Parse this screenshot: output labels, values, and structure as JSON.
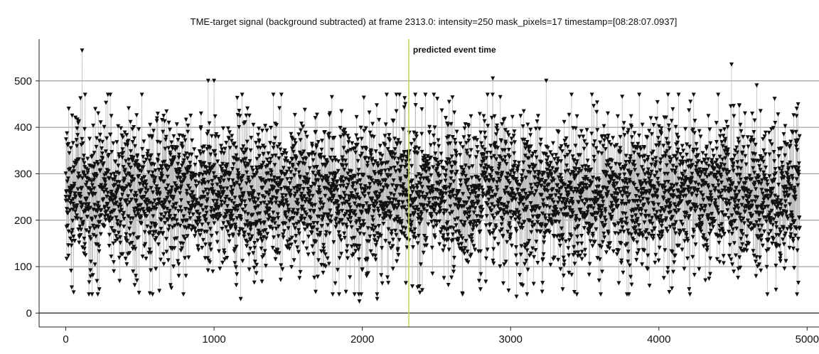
{
  "chart_data": {
    "type": "scatter",
    "title": "TME-target signal (background subtracted) at frame 2313.0: intensity=250 mask_pixels=17 timestamp=[08:28:07.0937]",
    "xlabel": "",
    "ylabel": "",
    "xlim": [
      -180,
      5080
    ],
    "ylim": [
      -30,
      590
    ],
    "x_ticks": [
      0,
      1000,
      2000,
      3000,
      4000,
      5000
    ],
    "x_tick_labels": [
      "0",
      "1000",
      "2000",
      "3000",
      "4000",
      "5000"
    ],
    "y_ticks": [
      0,
      100,
      200,
      300,
      400,
      500
    ],
    "y_tick_labels": [
      "0",
      "100",
      "200",
      "300",
      "400",
      "500"
    ],
    "grid": "horizontal",
    "legend": "none",
    "marker": "triangle-down",
    "series": [
      {
        "color": "#111111",
        "line_color": "#bdbdbd",
        "n_points": 4950,
        "x_range": [
          0,
          4950
        ],
        "mean": 255,
        "spread": 80,
        "sample_points": [
          [
            0,
            250
          ],
          [
            20,
            440
          ],
          [
            40,
            55
          ],
          [
            110,
            565
          ],
          [
            130,
            470
          ],
          [
            300,
            470
          ],
          [
            480,
            70
          ],
          [
            960,
            500
          ],
          [
            1000,
            500
          ],
          [
            1150,
            60
          ],
          [
            1180,
            30
          ],
          [
            1400,
            470
          ],
          [
            1980,
            25
          ],
          [
            2100,
            30
          ],
          [
            2230,
            470
          ],
          [
            2290,
            450
          ],
          [
            2880,
            505
          ],
          [
            3040,
            35
          ],
          [
            3240,
            500
          ],
          [
            3430,
            45
          ],
          [
            4070,
            45
          ],
          [
            4490,
            535
          ],
          [
            4660,
            490
          ],
          [
            4790,
            50
          ],
          [
            4930,
            440
          ]
        ]
      }
    ],
    "annotations": [
      {
        "type": "vertical-line",
        "x": 2313,
        "color": "#c8d45a",
        "text": "predicted event time"
      }
    ]
  }
}
